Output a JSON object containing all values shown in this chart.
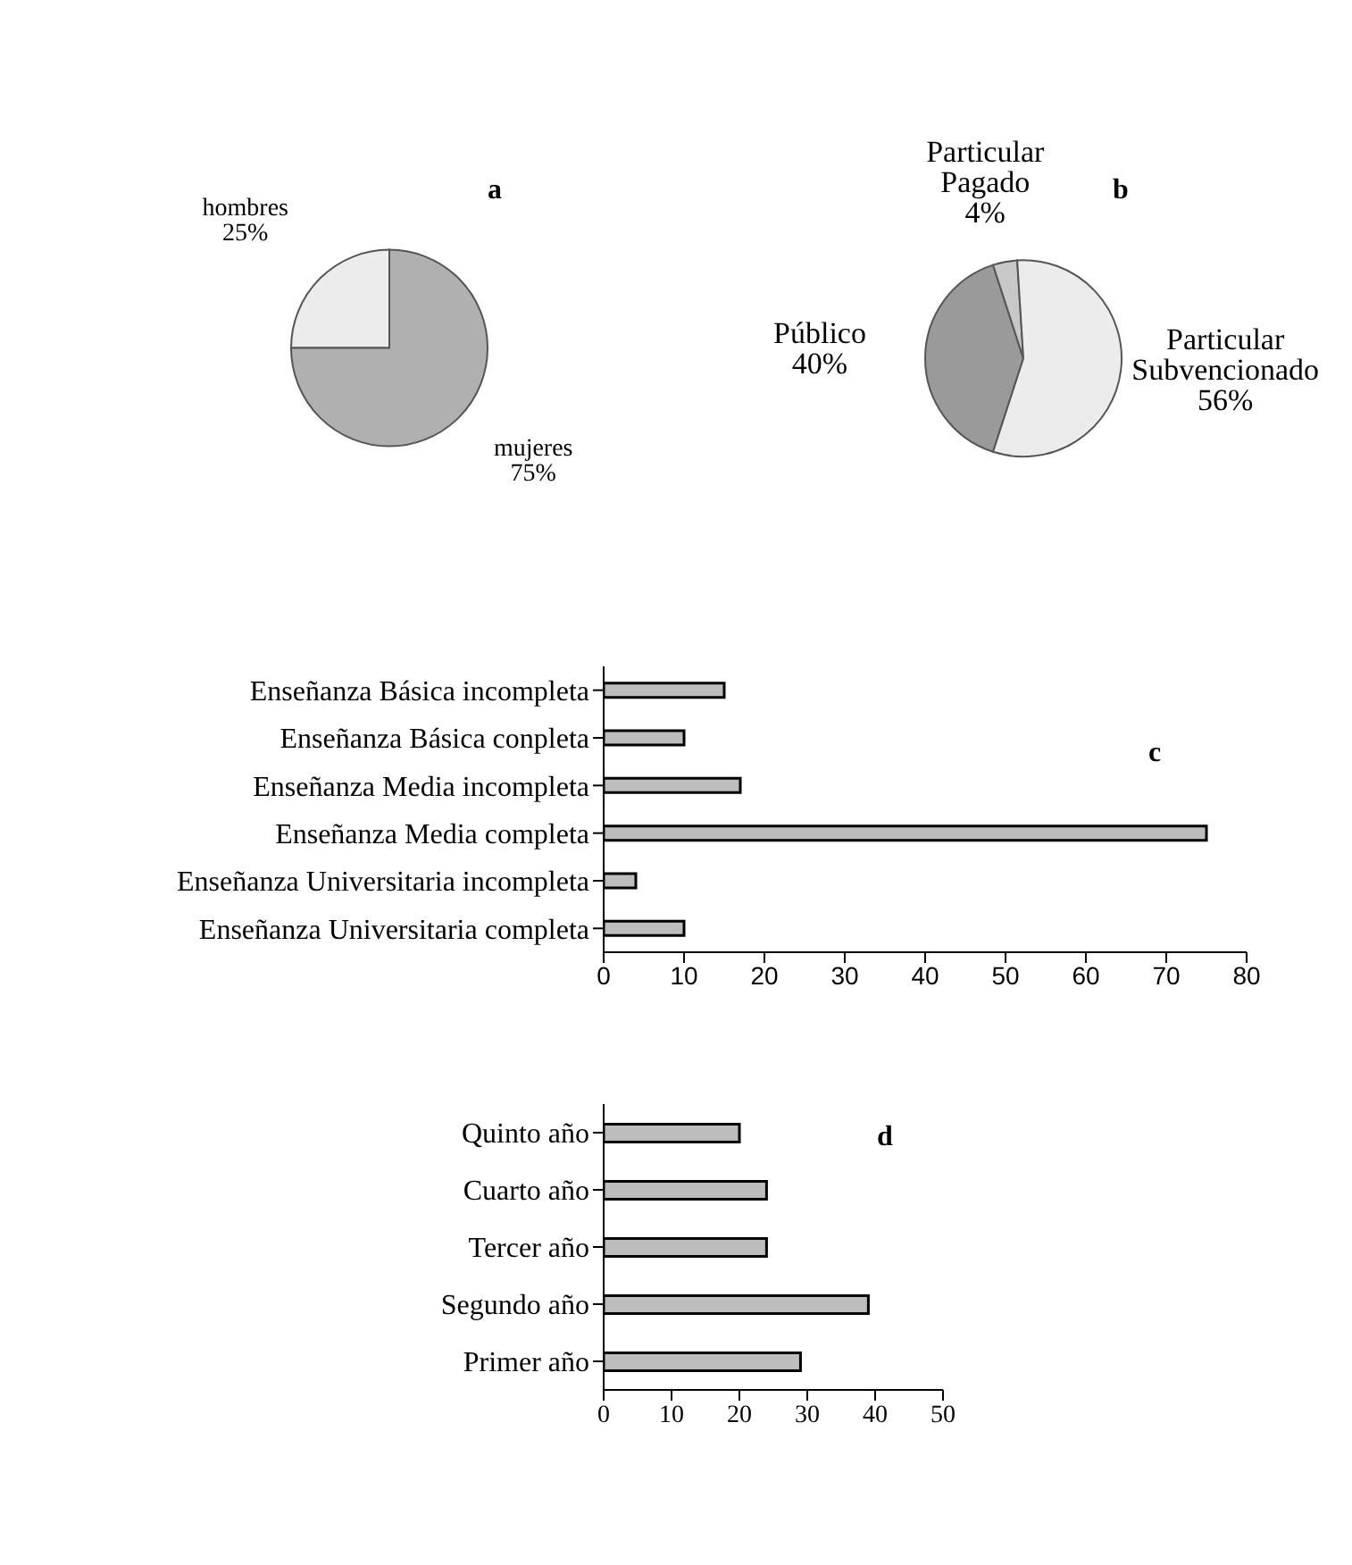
{
  "chart_data": [
    {
      "type": "pie",
      "title": "a",
      "categories": [
        "hombres",
        "mujeres"
      ],
      "values": [
        25,
        75
      ],
      "value_labels": [
        "25%",
        "75%"
      ],
      "colors": [
        "#ececec",
        "#b0b0b0"
      ]
    },
    {
      "type": "pie",
      "title": "b",
      "categories": [
        "Público",
        "Particular Pagado",
        "Particular Subvencionado"
      ],
      "values": [
        40,
        4,
        56
      ],
      "value_labels": [
        "40%",
        "4%",
        "56%"
      ],
      "colors": [
        "#9a9a9a",
        "#c8c8c8",
        "#ececec"
      ]
    },
    {
      "type": "bar",
      "orientation": "horizontal",
      "title": "c",
      "categories": [
        "Enseñanza Básica incompleta",
        "Enseñanza Básica conpleta",
        "Enseñanza Media incompleta",
        "Enseñanza Media completa",
        "Enseñanza Universitaria incompleta",
        "Enseñanza Universitaria completa"
      ],
      "values": [
        15,
        10,
        17,
        75,
        4,
        10
      ],
      "color": "#bdbdbd",
      "xlim": [
        0,
        80
      ],
      "xticks": [
        0,
        10,
        20,
        30,
        40,
        50,
        60,
        70,
        80
      ]
    },
    {
      "type": "bar",
      "orientation": "horizontal",
      "title": "d",
      "categories": [
        "Quinto año",
        "Cuarto año",
        "Tercer año",
        "Segundo año",
        "Primer año"
      ],
      "values": [
        20,
        24,
        24,
        39,
        29
      ],
      "color": "#bdbdbd",
      "xlim": [
        0,
        50
      ],
      "xticks": [
        0,
        10,
        20,
        30,
        40,
        50
      ]
    }
  ]
}
